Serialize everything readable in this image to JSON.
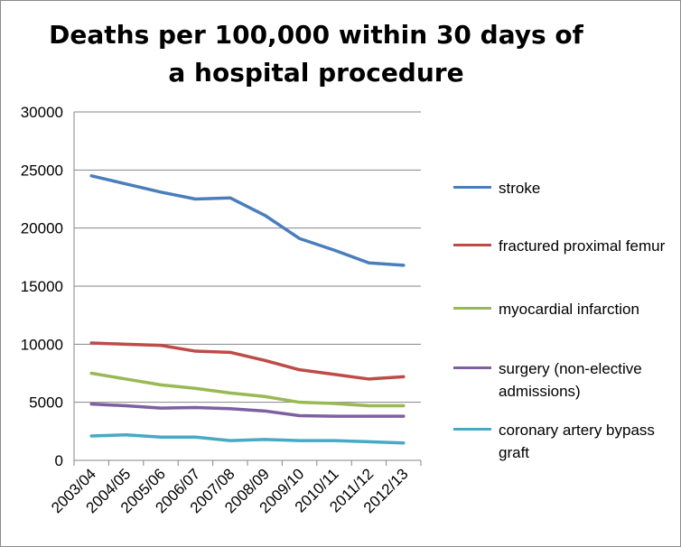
{
  "chart_data": {
    "type": "line",
    "title": "Deaths per 100,000 within 30 days of a hospital procedure",
    "categories": [
      "2003/04",
      "2004/05",
      "2005/06",
      "2006/07",
      "2007/08",
      "2008/09",
      "2009/10",
      "2010/11",
      "2011/12",
      "2012/13"
    ],
    "ylim": [
      0,
      30000
    ],
    "yticks": [
      "0",
      "5000",
      "10000",
      "15000",
      "20000",
      "25000",
      "30000"
    ],
    "grid": true,
    "legend_position": "right",
    "series": [
      {
        "name": "stroke",
        "color": "#4A7EBB",
        "values": [
          24500,
          23800,
          23100,
          22500,
          22600,
          21100,
          19100,
          18100,
          17000,
          16800
        ]
      },
      {
        "name": "fractured proximal femur",
        "color": "#BE4B48",
        "values": [
          10100,
          10000,
          9900,
          9400,
          9300,
          8600,
          7800,
          7400,
          7000,
          7200
        ]
      },
      {
        "name": "myocardial infarction",
        "color": "#98B954",
        "values": [
          7500,
          7000,
          6500,
          6200,
          5800,
          5500,
          5000,
          4900,
          4700,
          4700
        ]
      },
      {
        "name": "surgery (non-elective admissions)",
        "color": "#7D60A0",
        "values": [
          4850,
          4700,
          4500,
          4550,
          4450,
          4250,
          3850,
          3800,
          3800,
          3800
        ]
      },
      {
        "name": "coronary artery bypass graft",
        "color": "#46AAC5",
        "values": [
          2100,
          2200,
          2000,
          2000,
          1700,
          1800,
          1700,
          1700,
          1600,
          1500
        ]
      }
    ]
  }
}
